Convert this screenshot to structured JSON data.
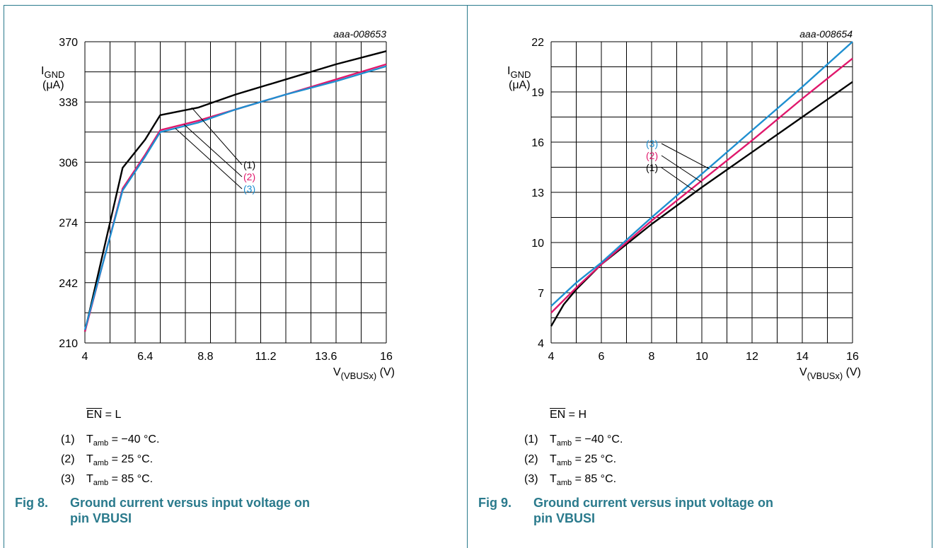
{
  "colors": {
    "series1": "#000000",
    "series2": "#e0186c",
    "series3": "#1f8fd0",
    "accent": "#2a7a8c"
  },
  "charts": [
    {
      "condition": {
        "signal": "EN",
        "value": " = L"
      },
      "notes": [
        {
          "num": "(1)",
          "sym": "T",
          "sub": "amb",
          "rest": " = −40 °C."
        },
        {
          "num": "(2)",
          "sym": "T",
          "sub": "amb",
          "rest": " = 25 °C."
        },
        {
          "num": "(3)",
          "sym": "T",
          "sub": "amb",
          "rest": " = 85 °C."
        }
      ],
      "caption": {
        "fig": "Fig 8.",
        "text": "Ground current versus input voltage on pin VBUSI"
      }
    },
    {
      "condition": {
        "signal": "EN",
        "value": " = H"
      },
      "notes": [
        {
          "num": "(1)",
          "sym": "T",
          "sub": "amb",
          "rest": " = −40 °C."
        },
        {
          "num": "(2)",
          "sym": "T",
          "sub": "amb",
          "rest": " = 25 °C."
        },
        {
          "num": "(3)",
          "sym": "T",
          "sub": "amb",
          "rest": " = 85 °C."
        }
      ],
      "caption": {
        "fig": "Fig 9.",
        "text": "Ground current versus input voltage on pin VBUSI"
      }
    }
  ],
  "chart_data": [
    {
      "type": "line",
      "code": "aaa-008653",
      "ylabel": "I",
      "ylabel_sub": "GND",
      "yunit": "(μA)",
      "xlabel": "V",
      "xlabel_sub": "(VBUSx)",
      "xunit": " (V)",
      "xlim": [
        4,
        16
      ],
      "ylim": [
        210,
        370
      ],
      "xticks": [
        "4",
        "6.4",
        "8.8",
        "11.2",
        "13.6",
        "16"
      ],
      "yticks": [
        "210",
        "242",
        "274",
        "306",
        "338",
        "370"
      ],
      "xticks_values": [
        4,
        6.4,
        8.8,
        11.2,
        13.6,
        16
      ],
      "yticks_values": [
        210,
        242,
        274,
        306,
        338,
        370
      ],
      "grid": {
        "xdiv": 12,
        "ydiv": 10
      },
      "series": [
        {
          "label": "(1)",
          "color": "#000000",
          "x": [
            4,
            5.5,
            6.4,
            7.0,
            8.5,
            10.0,
            12.0,
            14.0,
            16.0
          ],
          "y": [
            216,
            303,
            318,
            331,
            335,
            342,
            350,
            358,
            365
          ]
        },
        {
          "label": "(2)",
          "color": "#e0186c",
          "x": [
            4,
            5.5,
            6.4,
            7.0,
            8.5,
            10.0,
            12.0,
            14.0,
            16.0
          ],
          "y": [
            216,
            292,
            310,
            323,
            328,
            334,
            342,
            350,
            358
          ]
        },
        {
          "label": "(3)",
          "color": "#1f8fd0",
          "x": [
            4,
            5.5,
            6.4,
            7.0,
            8.5,
            10.0,
            12.0,
            14.0,
            16.0
          ],
          "y": [
            217,
            291,
            309,
            322,
            327,
            334,
            342,
            349,
            357
          ]
        }
      ]
    },
    {
      "type": "line",
      "code": "aaa-008654",
      "ylabel": "I",
      "ylabel_sub": "GND",
      "yunit": "(μA)",
      "xlabel": "V",
      "xlabel_sub": "(VBUSx)",
      "xunit": " (V)",
      "xlim": [
        4,
        16
      ],
      "ylim": [
        4,
        22
      ],
      "xticks": [
        "4",
        "6",
        "8",
        "10",
        "12",
        "14",
        "16"
      ],
      "yticks": [
        "4",
        "7",
        "10",
        "13",
        "16",
        "19",
        "22"
      ],
      "xticks_values": [
        4,
        6,
        8,
        10,
        12,
        14,
        16
      ],
      "yticks_values": [
        4,
        7,
        10,
        13,
        16,
        19,
        22
      ],
      "grid": {
        "xdiv": 12,
        "ydiv": 12
      },
      "series": [
        {
          "label": "(1)",
          "color": "#000000",
          "x": [
            4,
            4.5,
            5,
            6,
            8,
            10,
            12,
            14,
            16
          ],
          "y": [
            5.0,
            6.3,
            7.2,
            8.7,
            11.1,
            13.3,
            15.4,
            17.5,
            19.6
          ]
        },
        {
          "label": "(2)",
          "color": "#e0186c",
          "x": [
            4,
            5,
            6,
            8,
            10,
            12,
            14,
            16
          ],
          "y": [
            5.8,
            7.3,
            8.7,
            11.3,
            13.7,
            16.1,
            18.6,
            21.0
          ]
        },
        {
          "label": "(3)",
          "color": "#1f8fd0",
          "x": [
            4,
            5,
            6,
            8,
            10,
            12,
            14,
            16
          ],
          "y": [
            6.2,
            7.6,
            8.8,
            11.5,
            14.1,
            16.7,
            19.3,
            22.0
          ]
        }
      ]
    }
  ]
}
